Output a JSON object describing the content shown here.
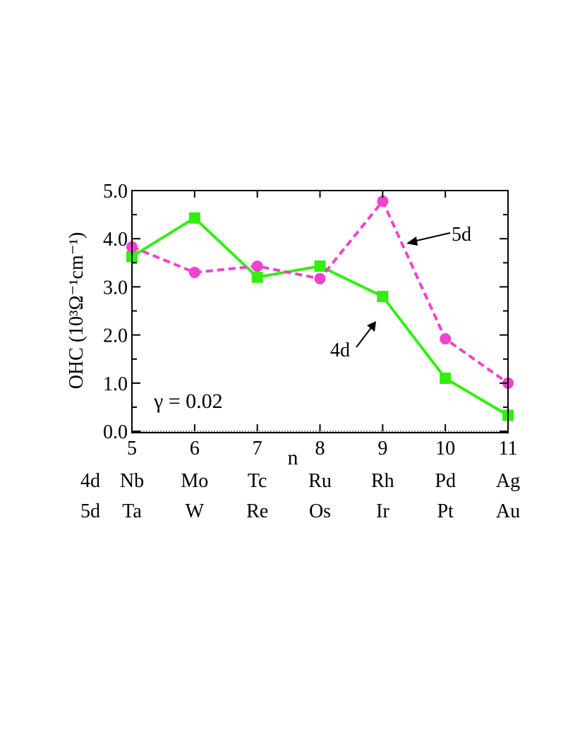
{
  "chart_data": {
    "type": "line",
    "ylabel": "OHC (10³Ω⁻¹cm⁻¹)",
    "xlabel": "n",
    "x": [
      5,
      6,
      7,
      8,
      9,
      10,
      11
    ],
    "xlim": [
      5,
      11
    ],
    "ylim": [
      0.0,
      5.0
    ],
    "x_ticks": [
      "5",
      "6",
      "7",
      "8",
      "9",
      "10",
      "11"
    ],
    "y_ticks": [
      "0.0",
      "1.0",
      "2.0",
      "3.0",
      "4.0",
      "5.0"
    ],
    "series": [
      {
        "name": "4d",
        "color": "#33ee11",
        "line_style": "solid",
        "marker": "square",
        "values": [
          3.63,
          4.43,
          3.2,
          3.43,
          2.8,
          1.1,
          0.33
        ]
      },
      {
        "name": "5d",
        "color": "#ee44cc",
        "line_style": "dashed",
        "marker": "circle",
        "values": [
          3.83,
          3.3,
          3.43,
          3.17,
          4.78,
          1.92,
          1.0
        ]
      }
    ],
    "annotations": {
      "gamma_label": "γ = 0.02",
      "label_4d": "4d",
      "label_5d": "5d"
    },
    "element_rows": [
      {
        "label": "4d",
        "elements": [
          "Nb",
          "Mo",
          "Tc",
          "Ru",
          "Rh",
          "Pd",
          "Ag"
        ]
      },
      {
        "label": "5d",
        "elements": [
          "Ta",
          "W",
          "Re",
          "Os",
          "Ir",
          "Pt",
          "Au"
        ]
      }
    ],
    "grid": false,
    "legend": "none"
  }
}
